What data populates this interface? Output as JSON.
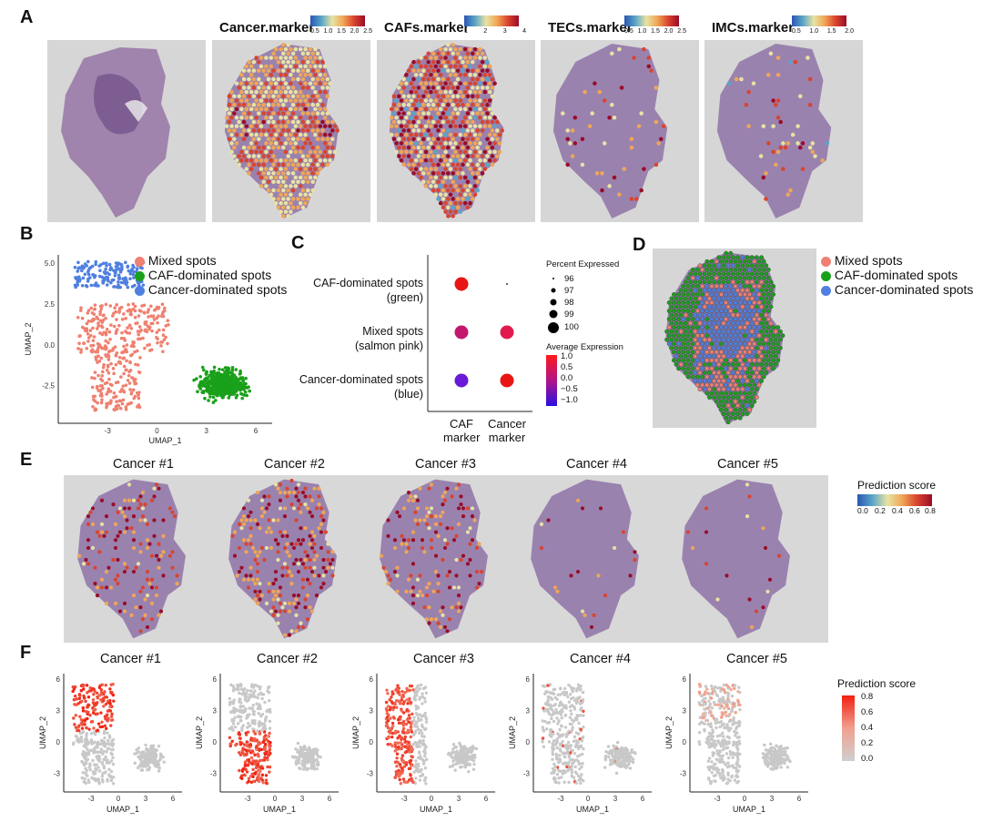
{
  "panels": {
    "A": "A",
    "B": "B",
    "C": "C",
    "D": "D",
    "E": "E",
    "F": "F"
  },
  "panelA": {
    "titles": [
      "Cancer.marker",
      "CAFs.marker",
      "TECs.marker",
      "IMCs.marker"
    ],
    "colorbar_ticks": [
      [
        "0.5",
        "1.0",
        "1.5",
        "2.0",
        "2.5"
      ],
      [
        "1",
        "2",
        "3",
        "4"
      ],
      [
        "0.5",
        "1.0",
        "1.5",
        "2.0",
        "2.5"
      ],
      [
        "0.5",
        "1.0",
        "1.5",
        "2.0"
      ]
    ]
  },
  "panelB": {
    "xlabel": "UMAP_1",
    "ylabel": "UMAP_2",
    "xticks": [
      "-3",
      "0",
      "3",
      "6"
    ],
    "yticks": [
      "5.0",
      "2.5",
      "0.0",
      "-2.5"
    ],
    "legend": [
      "Mixed spots",
      "CAF-dominated spots",
      "Cancer-dominated spots"
    ]
  },
  "panelC": {
    "rows": [
      "CAF-dominated spots",
      "(green)",
      "Mixed spots",
      "(salmon pink)",
      "Cancer-dominated spots",
      "(blue)"
    ],
    "cols": [
      "CAF",
      "marker",
      "Cancer",
      "marker"
    ],
    "pct_title": "Percent Expressed",
    "pct_values": [
      "96",
      "97",
      "98",
      "99",
      "100"
    ],
    "avg_title": "Average Expression",
    "avg_ticks": [
      "1.0",
      "0.5",
      "0.0",
      "−0.5",
      "−1.0"
    ]
  },
  "panelD": {
    "legend": [
      "Mixed spots",
      "CAF-dominated spots",
      "Cancer-dominated spots"
    ]
  },
  "panelE": {
    "titles": [
      "Cancer #1",
      "Cancer #2",
      "Cancer #3",
      "Cancer #4",
      "Cancer #5"
    ],
    "legend_title": "Prediction score",
    "legend_ticks": [
      "0.0",
      "0.2",
      "0.4",
      "0.6",
      "0.8"
    ]
  },
  "panelF": {
    "titles": [
      "Cancer #1",
      "Cancer #2",
      "Cancer #3",
      "Cancer #4",
      "Cancer #5"
    ],
    "xlabel": "UMAP_1",
    "ylabel": "UMAP_2",
    "xticks": [
      "-3",
      "0",
      "3",
      "6"
    ],
    "yticks": [
      "6",
      "3",
      "0",
      "-3"
    ],
    "legend_title": "Prediction score",
    "legend_ticks": [
      "0.8",
      "0.6",
      "0.4",
      "0.2",
      "0.0"
    ]
  },
  "colors": {
    "mixed": "#f08070",
    "caf": "#1aa01a",
    "cancer": "#4f7fe0",
    "tissue_purple": "#8a6fa3",
    "grey_bg": "#d8d8d8"
  }
}
